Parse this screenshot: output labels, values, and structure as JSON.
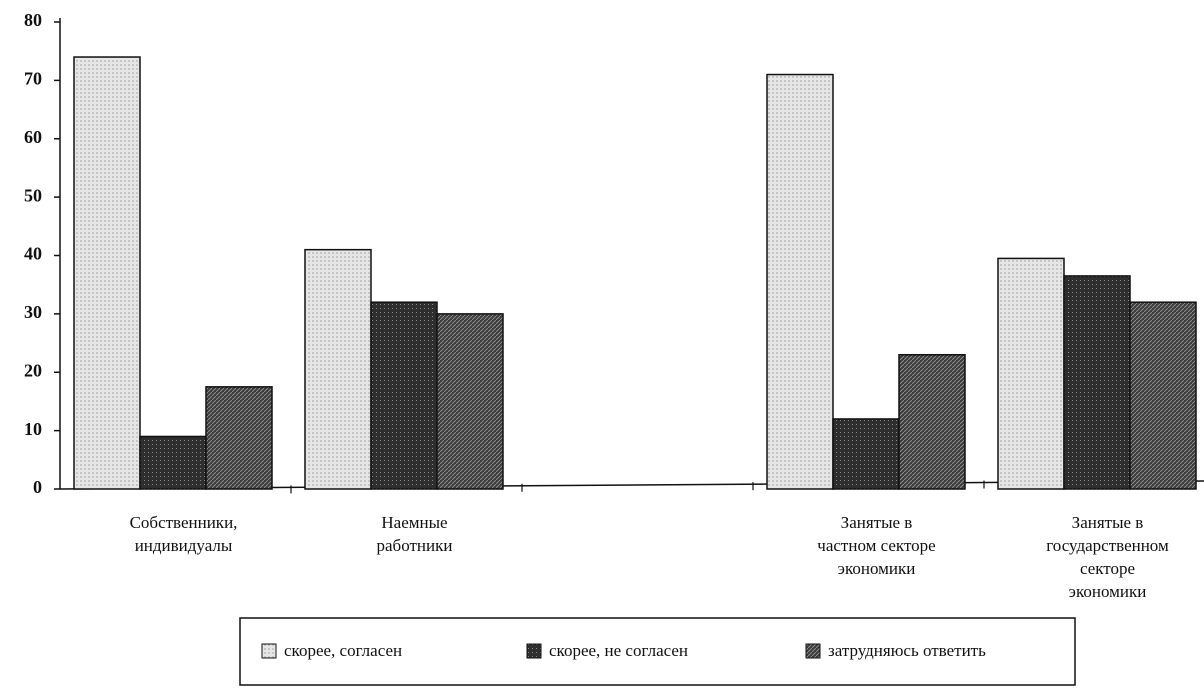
{
  "chart_data": {
    "type": "bar",
    "categories": [
      "Собственники,\nиндивидуалы",
      "Наемные\nработники",
      null,
      "Занятые в\nчастном секторе\nэкономики",
      "Занятые в\nгосударственном\nсекторе\nэкономики"
    ],
    "series": [
      {
        "name": "скорее, согласен",
        "color": "#e6e6e6",
        "values": [
          74,
          41,
          null,
          71,
          39.5
        ]
      },
      {
        "name": "скорее, не согласен",
        "color": "#2e2e2e",
        "values": [
          9,
          32,
          null,
          12,
          36.5
        ]
      },
      {
        "name": "затрудняюсь ответить",
        "color": "#3c3c3c",
        "values": [
          17.5,
          30,
          null,
          23,
          32
        ]
      }
    ],
    "ylim": [
      0,
      80
    ],
    "yticks": [
      0,
      10,
      20,
      30,
      40,
      50,
      60,
      70,
      80
    ]
  }
}
